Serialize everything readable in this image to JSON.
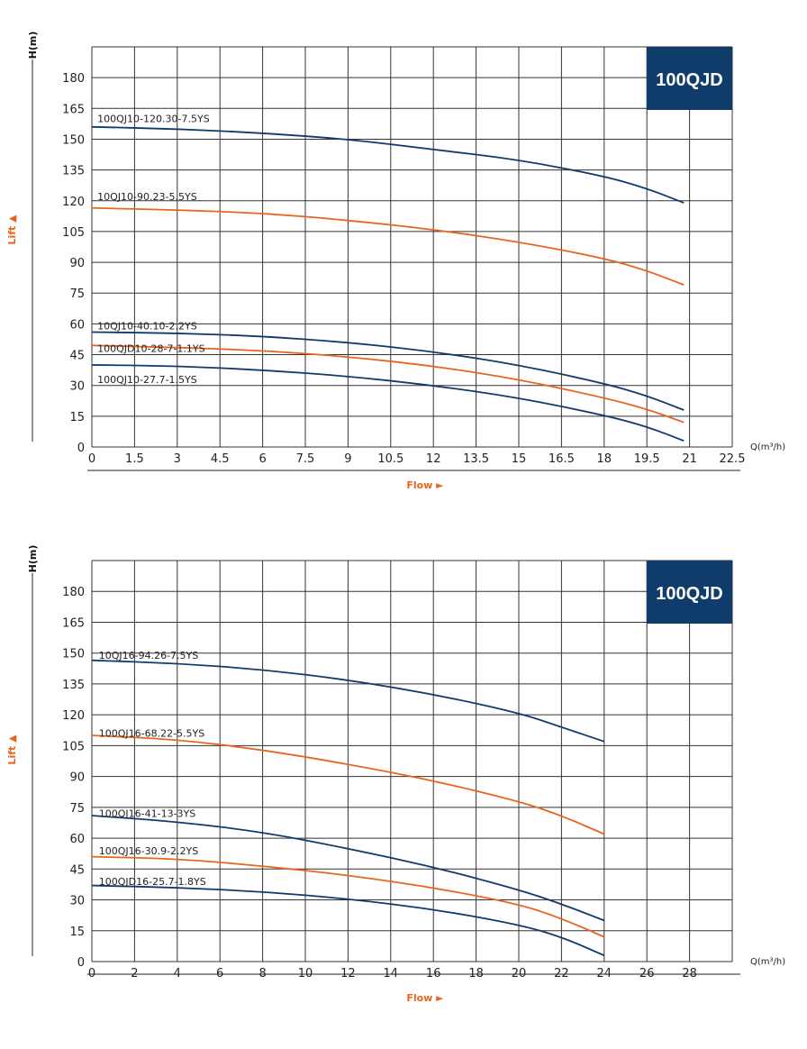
{
  "colors": {
    "navy": "#0f3c6b",
    "orange": "#e8651f",
    "grid": "#333333",
    "label_orange": "#e8651f"
  },
  "chart_data": [
    {
      "type": "line",
      "badge": "100QJD",
      "ylabel": "H(m)",
      "yaxis_side": "Lift ▲",
      "xlabel": "Flow ►",
      "xunit": "Q(m³/h)",
      "xlim": [
        0,
        22.5
      ],
      "ylim": [
        0,
        195
      ],
      "xticks": [
        "0",
        "1.5",
        "3",
        "4.5",
        "6",
        "7.5",
        "9",
        "10.5",
        "12",
        "13.5",
        "15",
        "16.5",
        "18",
        "19.5",
        "21",
        "22.5"
      ],
      "xtick_values": [
        0,
        1.5,
        3,
        4.5,
        6,
        7.5,
        9,
        10.5,
        12,
        13.5,
        15,
        16.5,
        18,
        19.5,
        21,
        22.5
      ],
      "yticks": [
        "0",
        "15",
        "30",
        "45",
        "60",
        "75",
        "90",
        "105",
        "120",
        "135",
        "150",
        "165",
        "180"
      ],
      "ytick_values": [
        0,
        15,
        30,
        45,
        60,
        75,
        90,
        105,
        120,
        135,
        150,
        165,
        180
      ],
      "grid": true,
      "series": [
        {
          "name": "100QJ10-120.30-7.5YS",
          "color": "navy",
          "label_at": [
            0.1,
            160
          ],
          "points": [
            [
              0,
              156
            ],
            [
              3,
              155
            ],
            [
              6,
              153
            ],
            [
              9,
              150
            ],
            [
              12,
              145
            ],
            [
              15,
              140
            ],
            [
              18,
              132
            ],
            [
              19.5,
              126
            ],
            [
              20.8,
              119
            ]
          ]
        },
        {
          "name": "10QJ10-90.23-5.5YS",
          "color": "orange",
          "label_at": [
            0.1,
            122
          ],
          "points": [
            [
              0,
              116.5
            ],
            [
              3,
              115.5
            ],
            [
              6,
              114
            ],
            [
              9,
              110.5
            ],
            [
              12,
              106
            ],
            [
              15,
              100
            ],
            [
              18,
              92
            ],
            [
              19.5,
              86
            ],
            [
              20.8,
              79
            ]
          ]
        },
        {
          "name": "10QJ10-40.10-2.2YS",
          "color": "navy",
          "label_at": [
            0.1,
            59
          ],
          "points": [
            [
              0,
              56
            ],
            [
              3,
              55.5
            ],
            [
              6,
              54
            ],
            [
              9,
              51
            ],
            [
              12,
              46.5
            ],
            [
              15,
              40
            ],
            [
              18,
              31
            ],
            [
              19.5,
              25
            ],
            [
              20.8,
              18
            ]
          ]
        },
        {
          "name": "100QJD10-28-7-1.1YS",
          "color": "orange",
          "label_at": [
            0.1,
            48
          ],
          "points": [
            [
              0,
              49.5
            ],
            [
              3,
              48.5
            ],
            [
              6,
              47
            ],
            [
              9,
              44
            ],
            [
              12,
              39.5
            ],
            [
              15,
              33
            ],
            [
              18,
              24
            ],
            [
              19.5,
              18.5
            ],
            [
              20.8,
              12
            ]
          ]
        },
        {
          "name": "100QJ10-27.7-1.5YS",
          "color": "navy",
          "label_at": [
            0.1,
            33
          ],
          "points": [
            [
              0,
              40
            ],
            [
              3,
              39.5
            ],
            [
              6,
              37.5
            ],
            [
              9,
              34.5
            ],
            [
              12,
              30
            ],
            [
              15,
              24
            ],
            [
              18,
              15.5
            ],
            [
              19.5,
              10
            ],
            [
              20.8,
              3
            ]
          ]
        }
      ]
    },
    {
      "type": "line",
      "badge": "100QJD",
      "ylabel": "H(m)",
      "yaxis_side": "Lift ▲",
      "xlabel": "Flow ►",
      "xunit": "Q(m³/h)",
      "xlim": [
        0,
        30
      ],
      "ylim": [
        0,
        195
      ],
      "xticks": [
        "0",
        "2",
        "4",
        "6",
        "8",
        "10",
        "12",
        "14",
        "16",
        "18",
        "20",
        "22",
        "24",
        "26",
        "28"
      ],
      "xtick_values": [
        0,
        2,
        4,
        6,
        8,
        10,
        12,
        14,
        16,
        18,
        20,
        22,
        24,
        26,
        28
      ],
      "yticks": [
        "0",
        "15",
        "30",
        "45",
        "60",
        "75",
        "90",
        "105",
        "120",
        "135",
        "150",
        "165",
        "180"
      ],
      "ytick_values": [
        0,
        15,
        30,
        45,
        60,
        75,
        90,
        105,
        120,
        135,
        150,
        165,
        180
      ],
      "grid": true,
      "series": [
        {
          "name": "10QJ16-94.26-7.5YS",
          "color": "navy",
          "label_at": [
            0.2,
            149
          ],
          "points": [
            [
              0,
              146.5
            ],
            [
              4,
              145
            ],
            [
              8,
              142
            ],
            [
              12,
              137
            ],
            [
              16,
              130
            ],
            [
              20,
              121
            ],
            [
              22,
              114
            ],
            [
              24,
              107
            ]
          ]
        },
        {
          "name": "100QJ16-68.22-5.5YS",
          "color": "orange",
          "label_at": [
            0.2,
            111
          ],
          "points": [
            [
              0,
              110
            ],
            [
              4,
              108
            ],
            [
              8,
              103
            ],
            [
              12,
              96
            ],
            [
              16,
              88
            ],
            [
              20,
              78
            ],
            [
              22,
              71
            ],
            [
              24,
              62
            ]
          ]
        },
        {
          "name": "100QJ16-41-13-3YS",
          "color": "navy",
          "label_at": [
            0.2,
            72
          ],
          "points": [
            [
              0,
              71
            ],
            [
              4,
              68
            ],
            [
              8,
              63
            ],
            [
              12,
              55
            ],
            [
              16,
              46
            ],
            [
              20,
              35
            ],
            [
              22,
              28
            ],
            [
              24,
              20
            ]
          ]
        },
        {
          "name": "100QJ16-30.9-2.2YS",
          "color": "orange",
          "label_at": [
            0.2,
            54
          ],
          "points": [
            [
              0,
              51
            ],
            [
              4,
              50
            ],
            [
              8,
              46.5
            ],
            [
              12,
              42
            ],
            [
              16,
              36
            ],
            [
              20,
              28
            ],
            [
              22,
              21
            ],
            [
              24,
              12
            ]
          ]
        },
        {
          "name": "100QJD16-25.7-1.8YS",
          "color": "navy",
          "label_at": [
            0.2,
            39
          ],
          "points": [
            [
              0,
              37
            ],
            [
              4,
              36
            ],
            [
              8,
              34
            ],
            [
              12,
              30.5
            ],
            [
              16,
              25.5
            ],
            [
              20,
              18
            ],
            [
              22,
              12
            ],
            [
              24,
              3
            ]
          ]
        }
      ]
    }
  ]
}
